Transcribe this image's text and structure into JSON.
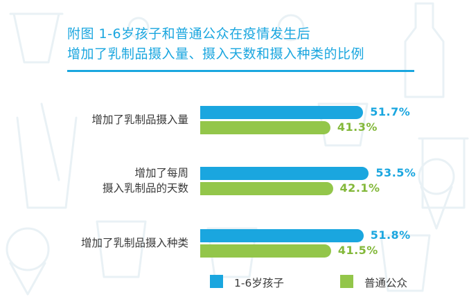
{
  "title_lines": [
    "附图 1-6岁孩子和普通公众在疫情发生后",
    "增加了乳制品摄入量、摄入天数和摄入种类的比例"
  ],
  "colors": {
    "series_1": "#1aa6df",
    "series_2": "#93c64a",
    "title": "#1aa6df"
  },
  "chart_data": {
    "type": "bar",
    "orientation": "horizontal",
    "categories": [
      [
        "增加了乳制品摄入量"
      ],
      [
        "增加了每周",
        "摄入乳制品的天数"
      ],
      [
        "增加了乳制品摄入种类"
      ]
    ],
    "series": [
      {
        "name": "1-6岁孩子",
        "values": [
          51.7,
          53.5,
          51.8
        ],
        "labels": [
          "51.7%",
          "53.5%",
          "51.8%"
        ]
      },
      {
        "name": "普通公众",
        "values": [
          41.3,
          42.1,
          41.5
        ],
        "labels": [
          "41.3%",
          "42.1%",
          "41.5%"
        ]
      }
    ],
    "value_unit": "%",
    "grid": false,
    "legend_position": "bottom"
  }
}
